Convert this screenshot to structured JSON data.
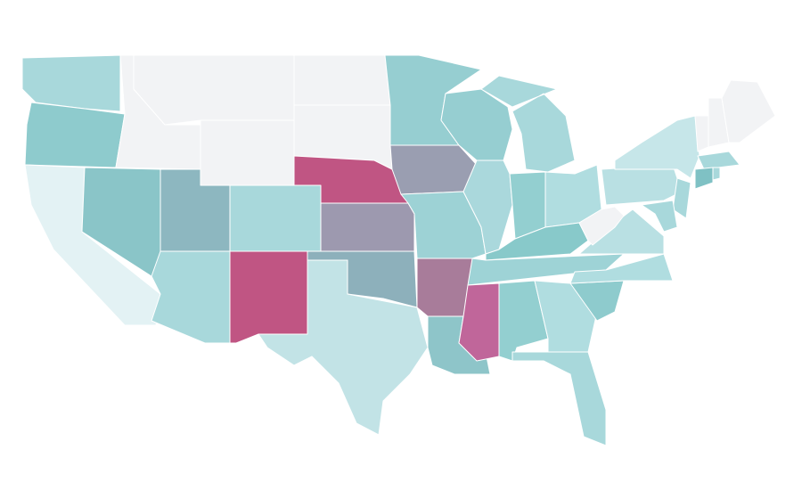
{
  "map": {
    "regions": [
      {
        "color": "#a8d8db"
      },
      {
        "color": "#8ecbcd"
      },
      {
        "color": "#e3f2f4"
      },
      {
        "color": "#8ac5c8"
      },
      {
        "color": "#f2f3f5"
      },
      {
        "color": "#f2f3f5"
      },
      {
        "color": "#f2f3f5"
      },
      {
        "color": "#8db7c0"
      },
      {
        "color": "#a8d8db"
      },
      {
        "color": "#a8d8db"
      },
      {
        "color": "#c05583"
      },
      {
        "color": "#f2f3f5"
      },
      {
        "color": "#f2f3f5"
      },
      {
        "color": "#c05583"
      },
      {
        "color": "#9d99af"
      },
      {
        "color": "#8db0bb"
      },
      {
        "color": "#c2e3e6"
      },
      {
        "color": "#96ced1"
      },
      {
        "color": "#9a9eb1"
      },
      {
        "color": "#9dd2d5"
      },
      {
        "color": "#a87c9a"
      },
      {
        "color": "#8ec5c9"
      },
      {
        "color": "#96ced1"
      },
      {
        "color": "#aad8dc"
      },
      {
        "color": "#a8d8db"
      },
      {
        "color": "#93cfd0"
      },
      {
        "color": "#b0dde0"
      },
      {
        "color": "#88c9ca"
      },
      {
        "color": "#9ed3d6"
      },
      {
        "color": "#c0669a"
      },
      {
        "color": "#93cfd0"
      },
      {
        "color": "#b0dde0"
      },
      {
        "color": "#a8d8db"
      },
      {
        "color": "#8ecbcd"
      },
      {
        "color": "#b0dde0"
      },
      {
        "color": "#b9e0e3"
      },
      {
        "color": "#f2f3f5"
      },
      {
        "color": "#b9e0e3"
      },
      {
        "color": "#c6e6e9"
      },
      {
        "color": "#f2f3f5"
      },
      {
        "color": "#f2f3f5"
      },
      {
        "color": "#f2f3f5"
      },
      {
        "color": "#a8d8db"
      },
      {
        "color": "#7fc1c4"
      },
      {
        "color": "#a8d8db"
      },
      {
        "color": "#a8d8db"
      },
      {
        "color": "#a8d8db"
      }
    ]
  }
}
